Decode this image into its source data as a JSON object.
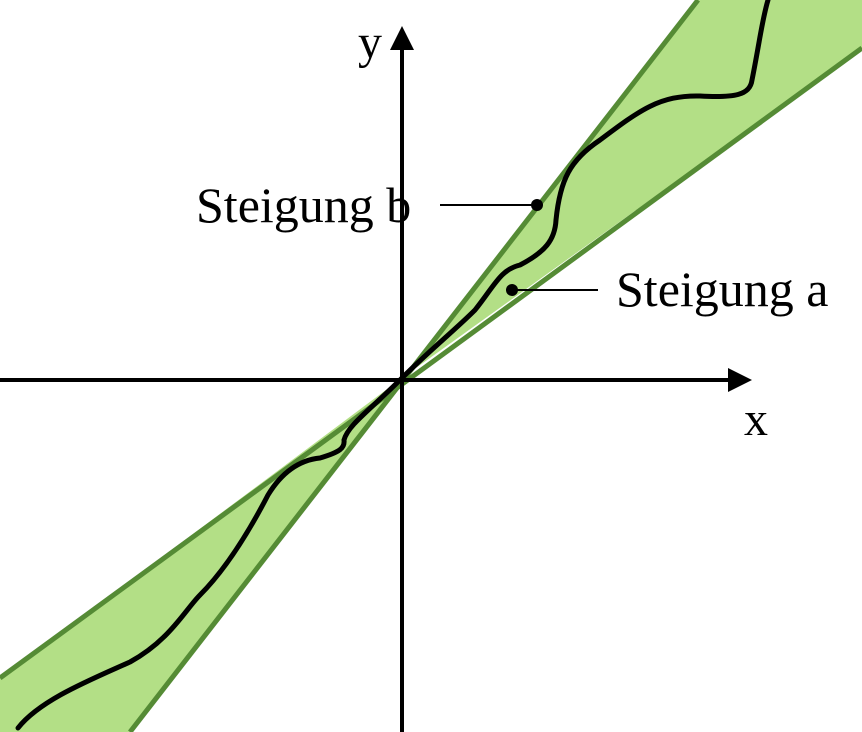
{
  "axes": {
    "x_label": "x",
    "y_label": "y"
  },
  "annotations": {
    "upper_slope_label": "Steigung b",
    "lower_slope_label": "Steigung a"
  },
  "colors": {
    "cone_fill": "#b3df86",
    "cone_edge": "#558b35",
    "curve": "#000000",
    "axes": "#000000"
  }
}
